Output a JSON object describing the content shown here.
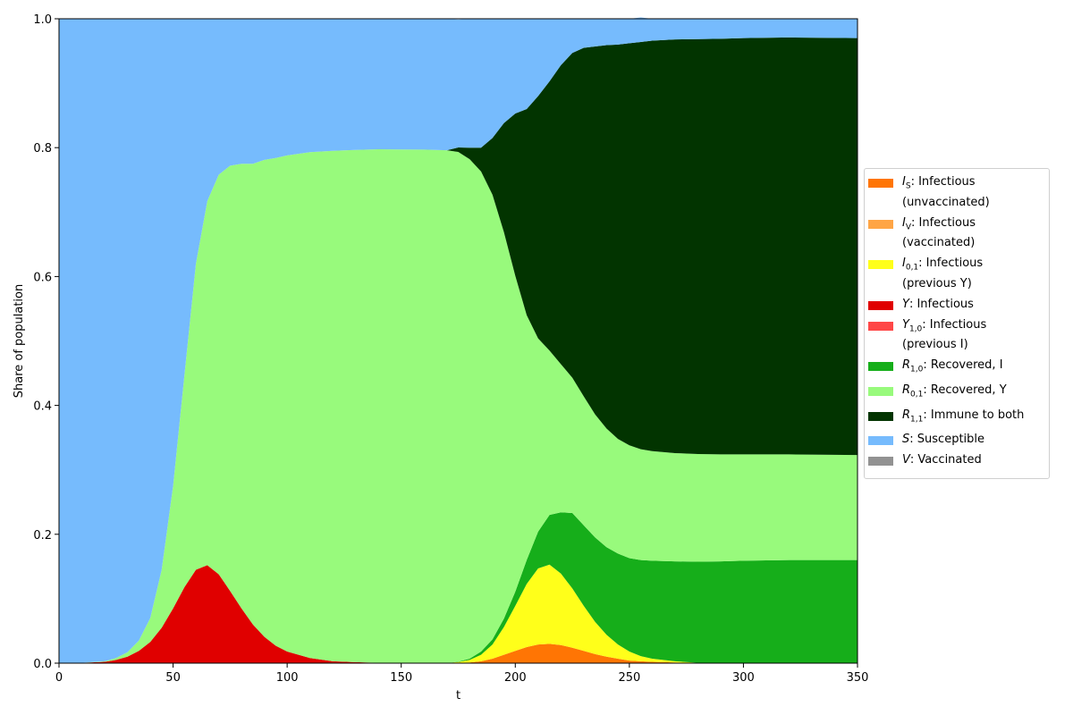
{
  "chart_data": {
    "type": "area",
    "stacked": true,
    "xlabel": "t",
    "ylabel": "Share of population",
    "xlim": [
      0,
      350
    ],
    "ylim": [
      0,
      1
    ],
    "xticks": [
      0,
      50,
      100,
      150,
      200,
      250,
      300,
      350
    ],
    "yticks": [
      0.0,
      0.2,
      0.4,
      0.6,
      0.8,
      1.0
    ],
    "legend_position": "center-right-outside",
    "x": [
      0,
      10,
      20,
      25,
      30,
      35,
      40,
      45,
      50,
      55,
      60,
      65,
      70,
      75,
      80,
      85,
      90,
      95,
      100,
      110,
      120,
      130,
      140,
      150,
      160,
      170,
      175,
      180,
      185,
      190,
      195,
      200,
      205,
      210,
      215,
      220,
      225,
      230,
      235,
      240,
      245,
      250,
      255,
      260,
      270,
      280,
      290,
      300,
      320,
      350
    ],
    "series": [
      {
        "symbol": "I",
        "sub": "S",
        "desc": "Infectious (unvaccinated)",
        "color": "#ff7504",
        "values": [
          0,
          0,
          0,
          0,
          0,
          0,
          0,
          0,
          0,
          0,
          0,
          0,
          0,
          0,
          0,
          0,
          0,
          0,
          0,
          0,
          0,
          0,
          0,
          0,
          0,
          0,
          0.0003,
          0.001,
          0.003,
          0.007,
          0.013,
          0.019,
          0.025,
          0.029,
          0.03,
          0.028,
          0.024,
          0.019,
          0.014,
          0.01,
          0.007,
          0.004,
          0.003,
          0.002,
          0.001,
          0,
          0,
          0,
          0,
          0
        ]
      },
      {
        "symbol": "I",
        "sub": "V",
        "desc": "Infectious (vaccinated)",
        "color": "#ffa545",
        "values": [
          0,
          0,
          0,
          0,
          0,
          0,
          0,
          0,
          0,
          0,
          0,
          0,
          0,
          0,
          0,
          0,
          0,
          0,
          0,
          0,
          0,
          0,
          0,
          0,
          0,
          0,
          0,
          0,
          0,
          0,
          0,
          0,
          0,
          0,
          0,
          0,
          0,
          0,
          0,
          0,
          0,
          0,
          0,
          0,
          0,
          0,
          0,
          0,
          0,
          0
        ]
      },
      {
        "symbol": "I",
        "sub": "0,1",
        "desc": "Infectious (previous Y)",
        "color": "#ffff1a",
        "values": [
          0,
          0,
          0,
          0,
          0,
          0,
          0,
          0,
          0,
          0,
          0,
          0,
          0,
          0,
          0,
          0,
          0,
          0,
          0,
          0,
          0,
          0,
          0,
          0,
          0,
          0,
          0.0015,
          0.004,
          0.01,
          0.022,
          0.043,
          0.07,
          0.098,
          0.118,
          0.123,
          0.111,
          0.092,
          0.07,
          0.05,
          0.034,
          0.022,
          0.014,
          0.008,
          0.005,
          0.002,
          0.0005,
          0,
          0,
          0,
          0
        ]
      },
      {
        "symbol": "Y",
        "sub": "",
        "desc": "Infectious",
        "color": "#e00000",
        "values": [
          0,
          0.0005,
          0.002,
          0.005,
          0.01,
          0.019,
          0.033,
          0.055,
          0.085,
          0.118,
          0.145,
          0.152,
          0.138,
          0.112,
          0.085,
          0.06,
          0.041,
          0.027,
          0.018,
          0.008,
          0.003,
          0.0015,
          0.0005,
          0.0002,
          0,
          0,
          0,
          0,
          0,
          0,
          0,
          0,
          0,
          0,
          0,
          0,
          0,
          0,
          0,
          0,
          0,
          0,
          0,
          0,
          0,
          0,
          0,
          0,
          0,
          0
        ]
      },
      {
        "symbol": "Y",
        "sub": "1,0",
        "desc": "Infectious (previous I)",
        "color": "#ff4747",
        "values": [
          0,
          0,
          0,
          0,
          0,
          0,
          0,
          0,
          0,
          0,
          0,
          0,
          0,
          0,
          0,
          0,
          0,
          0,
          0,
          0,
          0,
          0,
          0,
          0,
          0,
          0,
          0,
          0,
          0,
          0,
          0,
          0,
          0,
          0,
          0,
          0,
          0,
          0,
          0,
          0,
          0,
          0,
          0,
          0,
          0,
          0,
          0,
          0,
          0,
          0
        ]
      },
      {
        "symbol": "R",
        "sub": "1,0",
        "desc": "Recovered, I",
        "color": "#16ae1a",
        "values": [
          0,
          0,
          0,
          0,
          0,
          0,
          0,
          0,
          0,
          0,
          0,
          0,
          0,
          0,
          0,
          0,
          0,
          0,
          0,
          0,
          0,
          0,
          0,
          0,
          0,
          0,
          0.0005,
          0.002,
          0.005,
          0.008,
          0.013,
          0.022,
          0.037,
          0.057,
          0.077,
          0.095,
          0.117,
          0.125,
          0.131,
          0.136,
          0.141,
          0.145,
          0.149,
          0.152,
          0.155,
          0.157,
          0.158,
          0.159,
          0.16,
          0.16
        ]
      },
      {
        "symbol": "R",
        "sub": "0,1",
        "desc": "Recovered, Y",
        "color": "#98fa7c",
        "values": [
          0,
          0,
          0.001,
          0.003,
          0.007,
          0.016,
          0.037,
          0.09,
          0.19,
          0.33,
          0.475,
          0.565,
          0.62,
          0.66,
          0.69,
          0.715,
          0.74,
          0.757,
          0.77,
          0.785,
          0.792,
          0.795,
          0.797,
          0.797,
          0.797,
          0.796,
          0.791,
          0.775,
          0.745,
          0.69,
          0.6,
          0.49,
          0.38,
          0.3,
          0.255,
          0.23,
          0.21,
          0.2,
          0.191,
          0.184,
          0.178,
          0.175,
          0.172,
          0.17,
          0.168,
          0.167,
          0.166,
          0.165,
          0.164,
          0.163
        ]
      },
      {
        "symbol": "R",
        "sub": "1,1",
        "desc": "Immune to both",
        "color": "#023400",
        "values": [
          0,
          0,
          0,
          0,
          0,
          0,
          0,
          0,
          0,
          0,
          0,
          0,
          0,
          0,
          0,
          0,
          0,
          0,
          0,
          0,
          0,
          0,
          0,
          0,
          0,
          0,
          0.007,
          0.018,
          0.037,
          0.088,
          0.169,
          0.252,
          0.32,
          0.376,
          0.418,
          0.464,
          0.504,
          0.541,
          0.571,
          0.595,
          0.612,
          0.624,
          0.632,
          0.637,
          0.642,
          0.644,
          0.645,
          0.646,
          0.647,
          0.647
        ]
      },
      {
        "symbol": "S",
        "sub": "",
        "desc": "Susceptible",
        "color": "#76bbfd",
        "values": [
          1,
          0.9995,
          0.997,
          0.992,
          0.983,
          0.965,
          0.93,
          0.855,
          0.725,
          0.552,
          0.38,
          0.283,
          0.242,
          0.228,
          0.225,
          0.225,
          0.219,
          0.216,
          0.212,
          0.207,
          0.205,
          0.2035,
          0.2025,
          0.2028,
          0.203,
          0.204,
          0.1987,
          0.2,
          0.2,
          0.185,
          0.162,
          0.147,
          0.14,
          0.12,
          0.097,
          0.072,
          0.053,
          0.045,
          0.043,
          0.041,
          0.04,
          0.038,
          0.038,
          0.034,
          0.032,
          0.0315,
          0.031,
          0.03,
          0.029,
          0.03
        ]
      },
      {
        "symbol": "V",
        "sub": "",
        "desc": "Vaccinated",
        "color": "#929292",
        "values": [
          0,
          0,
          0,
          0,
          0,
          0,
          0,
          0,
          0,
          0,
          0,
          0,
          0,
          0,
          0,
          0,
          0,
          0,
          0,
          0,
          0,
          0,
          0,
          0,
          0,
          0,
          0,
          0,
          0,
          0,
          0,
          0,
          0,
          0,
          0,
          0,
          0,
          0,
          0,
          0,
          0,
          0,
          0,
          0,
          0,
          0,
          0,
          0,
          0,
          0
        ]
      }
    ],
    "legend": [
      {
        "symbol": "I",
        "sub": "S",
        "text": ": Infectious",
        "text2": "(unvaccinated)",
        "color": "#ff7504"
      },
      {
        "symbol": "I",
        "sub": "V",
        "text": ": Infectious",
        "text2": "(vaccinated)",
        "color": "#ffa545"
      },
      {
        "symbol": "I",
        "sub": "0,1",
        "text": ": Infectious",
        "text2": "(previous Y)",
        "color": "#ffff1a"
      },
      {
        "symbol": "Y",
        "sub": "",
        "text": ": Infectious",
        "text2": "",
        "color": "#e00000"
      },
      {
        "symbol": "Y",
        "sub": "1,0",
        "text": ": Infectious",
        "text2": "(previous I)",
        "color": "#ff4747"
      },
      {
        "symbol": "R",
        "sub": "1,0",
        "text": ": Recovered, I",
        "text2": "",
        "color": "#16ae1a"
      },
      {
        "symbol": "R",
        "sub": "0,1",
        "text": ": Recovered, Y",
        "text2": "",
        "color": "#98fa7c"
      },
      {
        "symbol": "R",
        "sub": "1,1",
        "text": ": Immune to both",
        "text2": "",
        "color": "#023400"
      },
      {
        "symbol": "S",
        "sub": "",
        "text": ": Susceptible",
        "text2": "",
        "color": "#76bbfd"
      },
      {
        "symbol": "V",
        "sub": "",
        "text": ": Vaccinated",
        "text2": "",
        "color": "#929292"
      }
    ]
  }
}
